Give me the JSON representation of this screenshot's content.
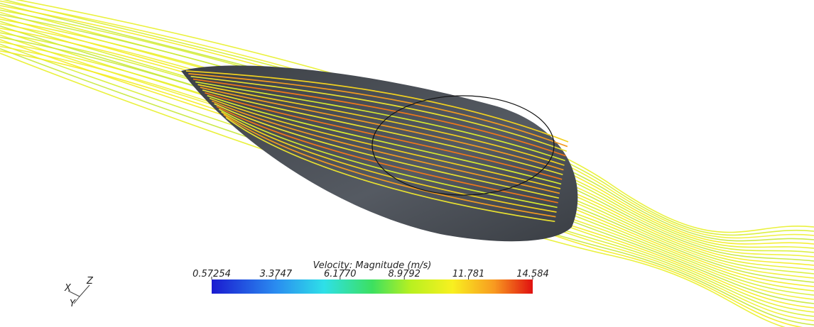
{
  "colorbar": {
    "title": "Velocity: Magnitude (m/s)",
    "range": [
      0.57254,
      14.584
    ],
    "ticks": [
      {
        "value": 0.57254,
        "label": "0.57254"
      },
      {
        "value": 3.3747,
        "label": "3.3747"
      },
      {
        "value": 6.177,
        "label": "6.1770"
      },
      {
        "value": 8.9792,
        "label": "8.9792"
      },
      {
        "value": 11.781,
        "label": "11.781"
      },
      {
        "value": 14.584,
        "label": "14.584"
      }
    ]
  },
  "axes_triad": {
    "x": "X",
    "y": "Y",
    "z": "Z"
  }
}
